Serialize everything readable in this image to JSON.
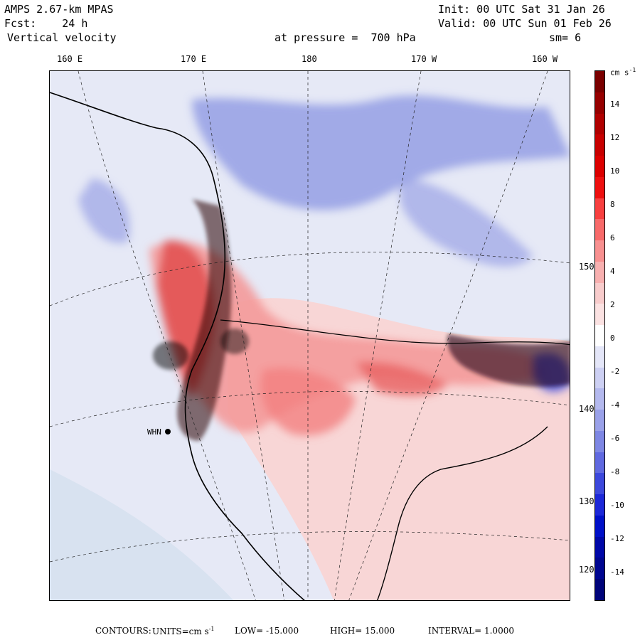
{
  "header": {
    "model": "AMPS 2.67-km MPAS",
    "init": "Init: 00 UTC Sat 31 Jan 26",
    "forecast": "Fcst:    24 h",
    "valid": "Valid: 00 UTC Sun 01 Feb 26",
    "field": "Vertical velocity",
    "level": "at pressure =  700 hPa",
    "smoothing": "sm= 6"
  },
  "longitude_labels": [
    "160 E",
    "170 E",
    "180",
    "170 W",
    "160 W"
  ],
  "latitude_labels": [
    "150 W",
    "140 W",
    "130 W",
    "120 W"
  ],
  "colorbar": {
    "units": "cm s",
    "units_exponent": "-1",
    "ticks": [
      "14",
      "12",
      "10",
      "8",
      "6",
      "4",
      "2",
      "0",
      "-2",
      "-4",
      "-6",
      "-8",
      "-10",
      "-12",
      "-14"
    ],
    "colors": [
      "#7a0000",
      "#960000",
      "#b00000",
      "#c80000",
      "#dc0000",
      "#ee1010",
      "#f84040",
      "#f86a6a",
      "#f89090",
      "#f8b0b0",
      "#f8cccc",
      "#fbe2e2",
      "#ffffff",
      "#e4e6f8",
      "#cdd0f3",
      "#b4b9ee",
      "#9aa1e9",
      "#7e87e4",
      "#6069e0",
      "#3c48dc",
      "#1c28d8",
      "#0010c8",
      "#0008a8",
      "#000690",
      "#00047a"
    ]
  },
  "stations": [
    "WHN"
  ],
  "footer": {
    "contours_label": "CONTOURS:",
    "units_label": "UNITS=cm s",
    "units_exp": "-1",
    "low_label": "LOW=",
    "low_value": "-15.000",
    "high_label": "HIGH=",
    "high_value": "15.000",
    "interval_label": "INTERVAL=",
    "interval_value": "1.0000"
  }
}
